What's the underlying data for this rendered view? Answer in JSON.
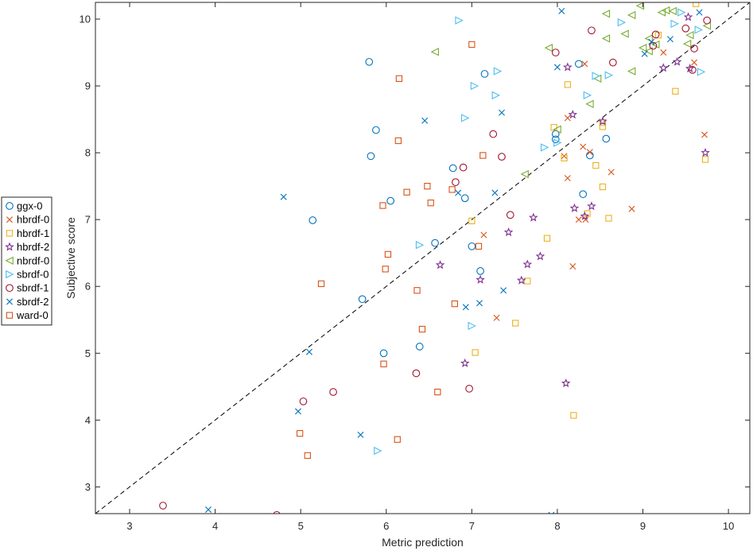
{
  "chart_data": {
    "type": "scatter",
    "title": "",
    "xlabel": "Metric prediction",
    "ylabel": "Subjective score",
    "xlim": [
      2.6,
      10.25
    ],
    "ylim": [
      2.6,
      10.25
    ],
    "xticks": [
      3,
      4,
      5,
      6,
      7,
      8,
      9,
      10
    ],
    "yticks": [
      3,
      4,
      5,
      6,
      7,
      8,
      9,
      10
    ],
    "grid": false,
    "legend_position": "outside-left",
    "diagonal": {
      "style": "dashed",
      "color": "#000000"
    },
    "series": [
      {
        "name": "ggx-0",
        "marker": "circle",
        "color": "#0072BD",
        "points": [
          [
            5.8,
            9.36
          ],
          [
            7.15,
            9.18
          ],
          [
            8.25,
            9.33
          ],
          [
            5.88,
            8.34
          ],
          [
            5.82,
            7.95
          ],
          [
            7.98,
            8.28
          ],
          [
            7.98,
            8.2
          ],
          [
            8.57,
            8.21
          ],
          [
            8.38,
            7.96
          ],
          [
            6.78,
            7.77
          ],
          [
            6.92,
            7.32
          ],
          [
            6.05,
            7.28
          ],
          [
            5.14,
            6.99
          ],
          [
            8.3,
            7.38
          ],
          [
            6.57,
            6.65
          ],
          [
            7.0,
            6.6
          ],
          [
            7.1,
            6.23
          ],
          [
            5.72,
            5.81
          ],
          [
            5.97,
            5.0
          ],
          [
            6.39,
            5.1
          ]
        ]
      },
      {
        "name": "hbrdf-0",
        "marker": "x",
        "color": "#D95319",
        "points": [
          [
            9.6,
            9.35
          ],
          [
            8.32,
            9.33
          ],
          [
            8.12,
            8.52
          ],
          [
            9.24,
            9.5
          ],
          [
            8.3,
            8.09
          ],
          [
            8.38,
            8.01
          ],
          [
            8.08,
            7.95
          ],
          [
            9.72,
            8.27
          ],
          [
            8.12,
            7.62
          ],
          [
            8.63,
            7.71
          ],
          [
            8.25,
            7.0
          ],
          [
            8.33,
            7.0
          ],
          [
            8.87,
            7.16
          ],
          [
            7.14,
            6.77
          ],
          [
            8.18,
            6.3
          ],
          [
            7.29,
            5.53
          ]
        ]
      },
      {
        "name": "hbrdf-1",
        "marker": "square",
        "color": "#EDB120",
        "points": [
          [
            9.62,
            10.23
          ],
          [
            9.18,
            9.76
          ],
          [
            9.38,
            8.92
          ],
          [
            8.12,
            9.02
          ],
          [
            8.53,
            8.45
          ],
          [
            7.96,
            8.38
          ],
          [
            8.53,
            8.39
          ],
          [
            8.08,
            7.92
          ],
          [
            8.45,
            7.81
          ],
          [
            9.73,
            7.9
          ],
          [
            8.53,
            7.49
          ],
          [
            7.0,
            6.98
          ],
          [
            8.6,
            7.02
          ],
          [
            8.35,
            7.09
          ],
          [
            7.88,
            6.72
          ],
          [
            7.65,
            6.08
          ],
          [
            7.51,
            5.45
          ],
          [
            7.04,
            5.01
          ],
          [
            8.19,
            4.07
          ]
        ]
      },
      {
        "name": "hbrdf-2",
        "marker": "star",
        "color": "#7E2F8E",
        "points": [
          [
            9.53,
            10.03
          ],
          [
            8.12,
            9.28
          ],
          [
            9.4,
            9.36
          ],
          [
            9.24,
            9.27
          ],
          [
            9.55,
            9.26
          ],
          [
            8.18,
            8.57
          ],
          [
            8.53,
            8.47
          ],
          [
            9.73,
            8.0
          ],
          [
            8.2,
            7.17
          ],
          [
            8.4,
            7.2
          ],
          [
            8.32,
            7.05
          ],
          [
            7.72,
            7.03
          ],
          [
            7.43,
            6.81
          ],
          [
            7.8,
            6.45
          ],
          [
            6.63,
            6.32
          ],
          [
            7.65,
            6.33
          ],
          [
            7.58,
            6.09
          ],
          [
            7.1,
            6.1
          ],
          [
            6.92,
            4.85
          ],
          [
            8.1,
            4.55
          ]
        ]
      },
      {
        "name": "nbrdf-0",
        "marker": "triangle-left",
        "color": "#77AC30",
        "points": [
          [
            8.97,
            10.2
          ],
          [
            8.57,
            10.08
          ],
          [
            8.87,
            10.06
          ],
          [
            9.27,
            10.13
          ],
          [
            9.35,
            10.12
          ],
          [
            9.22,
            10.1
          ],
          [
            8.79,
            9.78
          ],
          [
            9.07,
            9.71
          ],
          [
            8.57,
            9.71
          ],
          [
            9.55,
            9.76
          ],
          [
            9.52,
            9.63
          ],
          [
            9.15,
            9.62
          ],
          [
            9.0,
            9.57
          ],
          [
            7.9,
            9.57
          ],
          [
            6.57,
            9.51
          ],
          [
            9.07,
            9.52
          ],
          [
            8.47,
            9.11
          ],
          [
            8.87,
            9.22
          ],
          [
            9.75,
            9.9
          ],
          [
            8.38,
            8.73
          ],
          [
            8.0,
            8.35
          ],
          [
            7.62,
            7.68
          ]
        ]
      },
      {
        "name": "sbrdf-0",
        "marker": "triangle-right",
        "color": "#4DBEEE",
        "points": [
          [
            6.85,
            9.98
          ],
          [
            9.45,
            10.1
          ],
          [
            9.37,
            9.93
          ],
          [
            9.65,
            9.84
          ],
          [
            8.75,
            9.95
          ],
          [
            7.3,
            9.22
          ],
          [
            7.03,
            9.0
          ],
          [
            8.45,
            9.15
          ],
          [
            8.6,
            9.16
          ],
          [
            7.28,
            8.86
          ],
          [
            8.35,
            8.86
          ],
          [
            6.92,
            8.52
          ],
          [
            8.0,
            8.15
          ],
          [
            7.85,
            8.08
          ],
          [
            9.68,
            9.21
          ],
          [
            6.39,
            6.62
          ],
          [
            7.0,
            5.41
          ],
          [
            5.9,
            3.54
          ]
        ]
      },
      {
        "name": "sbrdf-1",
        "marker": "circle",
        "color": "#A2142F",
        "points": [
          [
            9.75,
            9.98
          ],
          [
            9.5,
            9.86
          ],
          [
            8.4,
            9.83
          ],
          [
            9.15,
            9.77
          ],
          [
            9.12,
            9.6
          ],
          [
            9.6,
            9.56
          ],
          [
            9.58,
            9.24
          ],
          [
            7.98,
            9.5
          ],
          [
            8.65,
            9.35
          ],
          [
            7.25,
            8.28
          ],
          [
            7.35,
            7.94
          ],
          [
            6.9,
            7.78
          ],
          [
            6.81,
            7.56
          ],
          [
            7.45,
            7.07
          ],
          [
            5.38,
            4.42
          ],
          [
            5.03,
            4.28
          ],
          [
            6.35,
            4.7
          ],
          [
            6.97,
            4.47
          ],
          [
            3.39,
            2.72
          ],
          [
            4.72,
            2.58
          ]
        ]
      },
      {
        "name": "sbrdf-2",
        "marker": "x",
        "color": "#0072BD",
        "points": [
          [
            8.05,
            10.12
          ],
          [
            9.66,
            10.1
          ],
          [
            9.1,
            9.66
          ],
          [
            9.02,
            9.48
          ],
          [
            9.32,
            9.7
          ],
          [
            8.0,
            9.28
          ],
          [
            6.45,
            8.48
          ],
          [
            7.35,
            8.6
          ],
          [
            4.8,
            7.34
          ],
          [
            7.27,
            7.4
          ],
          [
            6.84,
            7.4
          ],
          [
            7.09,
            5.75
          ],
          [
            7.37,
            5.94
          ],
          [
            6.93,
            5.69
          ],
          [
            5.1,
            5.02
          ],
          [
            4.97,
            4.13
          ],
          [
            5.7,
            3.78
          ],
          [
            3.92,
            2.66
          ],
          [
            7.93,
            2.58
          ]
        ]
      },
      {
        "name": "ward-0",
        "marker": "square",
        "color": "#D95319",
        "points": [
          [
            7.0,
            9.62
          ],
          [
            6.15,
            9.11
          ],
          [
            6.14,
            8.18
          ],
          [
            7.13,
            7.96
          ],
          [
            6.48,
            7.5
          ],
          [
            6.24,
            7.41
          ],
          [
            6.77,
            7.45
          ],
          [
            6.52,
            7.25
          ],
          [
            5.96,
            7.21
          ],
          [
            6.02,
            6.48
          ],
          [
            7.08,
            6.6
          ],
          [
            5.99,
            6.26
          ],
          [
            5.24,
            6.04
          ],
          [
            6.36,
            5.94
          ],
          [
            6.8,
            5.74
          ],
          [
            6.42,
            5.36
          ],
          [
            5.97,
            4.84
          ],
          [
            6.6,
            4.42
          ],
          [
            4.99,
            3.8
          ],
          [
            6.13,
            3.71
          ],
          [
            5.08,
            3.47
          ]
        ]
      }
    ]
  }
}
